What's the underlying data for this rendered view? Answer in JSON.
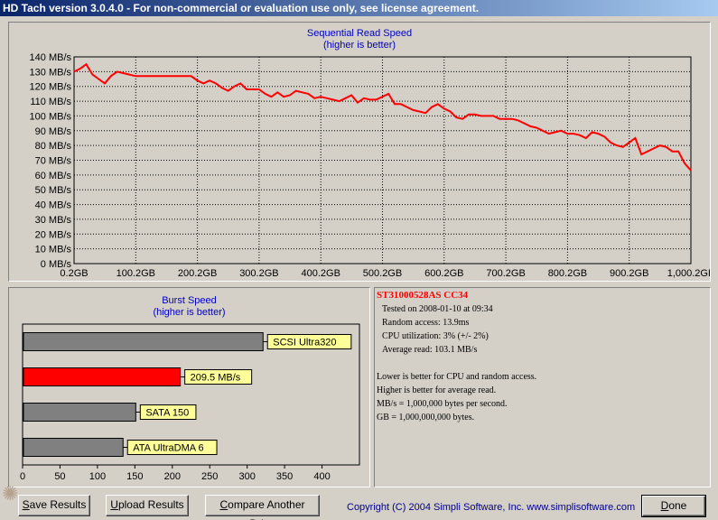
{
  "window": {
    "title": "HD Tach version 3.0.4.0  - For non-commercial or evaluation use only, see license agreement."
  },
  "seq_chart": {
    "title": "Sequential Read Speed",
    "subtitle": "(higher is better)"
  },
  "burst_chart": {
    "title": "Burst Speed",
    "subtitle": "(higher is better)"
  },
  "chart_data": [
    {
      "type": "line",
      "title": "Sequential Read Speed",
      "subtitle": "(higher is better)",
      "x_ticks": [
        "0.2GB",
        "100.2GB",
        "200.2GB",
        "300.2GB",
        "400.2GB",
        "500.2GB",
        "600.2GB",
        "700.2GB",
        "800.2GB",
        "900.2GB",
        "1,000.2GB"
      ],
      "y_ticks": [
        "0 MB/s",
        "10 MB/s",
        "20 MB/s",
        "30 MB/s",
        "40 MB/s",
        "50 MB/s",
        "60 MB/s",
        "70 MB/s",
        "80 MB/s",
        "90 MB/s",
        "100 MB/s",
        "110 MB/s",
        "120 MB/s",
        "130 MB/s",
        "140 MB/s"
      ],
      "xlim": [
        0.2,
        1000.2
      ],
      "ylim": [
        0,
        140
      ],
      "grid": true,
      "series": [
        {
          "color": "#ff0000",
          "x": [
            0.2,
            10,
            20,
            30,
            40,
            50,
            60,
            70,
            80,
            90,
            100,
            110,
            120,
            130,
            140,
            150,
            160,
            170,
            180,
            190,
            200,
            210,
            220,
            230,
            240,
            250,
            260,
            270,
            280,
            290,
            300,
            310,
            320,
            330,
            340,
            350,
            360,
            370,
            380,
            390,
            400,
            410,
            420,
            430,
            440,
            450,
            460,
            470,
            480,
            490,
            500,
            510,
            520,
            530,
            540,
            550,
            560,
            570,
            580,
            590,
            600,
            610,
            620,
            630,
            640,
            650,
            660,
            670,
            680,
            690,
            700,
            710,
            720,
            730,
            740,
            750,
            760,
            770,
            780,
            790,
            800,
            810,
            820,
            830,
            840,
            850,
            860,
            870,
            880,
            890,
            900,
            910,
            920,
            930,
            940,
            950,
            960,
            970,
            980,
            990,
            1000.2
          ],
          "y": [
            130,
            132,
            135,
            128,
            125,
            122,
            127,
            130,
            129,
            128,
            127,
            127,
            127,
            127,
            127,
            127,
            127,
            127,
            127,
            127,
            124,
            122,
            124,
            122,
            119,
            117,
            120,
            122,
            118,
            118,
            118,
            115,
            113,
            116,
            113,
            114,
            117,
            116,
            115,
            112,
            113,
            112,
            111,
            110,
            112,
            114,
            109,
            112,
            111,
            111,
            113,
            115,
            108,
            108,
            106,
            104,
            103,
            102,
            106,
            108,
            105,
            103,
            99,
            98,
            101,
            101,
            100,
            100,
            100,
            98,
            98,
            98,
            97,
            95,
            93,
            92,
            90,
            88,
            89,
            90,
            88,
            88,
            87,
            85,
            89,
            88,
            86,
            82,
            80,
            79,
            82,
            85,
            74,
            76,
            78,
            80,
            79,
            76,
            76,
            68,
            63
          ]
        }
      ]
    },
    {
      "type": "bar",
      "orientation": "horizontal",
      "title": "Burst Speed",
      "subtitle": "(higher is better)",
      "x_ticks": [
        "0",
        "50",
        "100",
        "150",
        "200",
        "250",
        "300",
        "350",
        "400"
      ],
      "xlim": [
        0,
        450
      ],
      "categories": [
        "SCSI Ultra320",
        "209.5 MB/s",
        "SATA 150",
        "ATA UltraDMA 6"
      ],
      "values": [
        320,
        209.5,
        150,
        133
      ],
      "colors": [
        "#808080",
        "#ff0000",
        "#808080",
        "#808080"
      ]
    }
  ],
  "info": {
    "drive": "ST31000528AS  CC34",
    "lines": [
      "Tested on 2008-01-10 at 09:34",
      "Random access: 13.9ms",
      "CPU utilization: 3% (+/- 2%)",
      "Average read: 103.1 MB/s"
    ],
    "notes": [
      "Lower is better for CPU and random access.",
      "Higher is better for average read.",
      "MB/s = 1,000,000 bytes per second.",
      "GB = 1,000,000,000 bytes."
    ]
  },
  "buttons": {
    "save": {
      "accel": "S",
      "rest": "ave Results"
    },
    "upload": {
      "accel": "U",
      "rest": "pload Results"
    },
    "compare": {
      "accel": "C",
      "rest": "ompare Another Drive"
    },
    "done": {
      "accel": "D",
      "rest": "one"
    }
  },
  "footer": {
    "copyright": "Copyright (C) 2004 Simpli Software, Inc. www.simplisoftware.com"
  },
  "watermark": "✺"
}
